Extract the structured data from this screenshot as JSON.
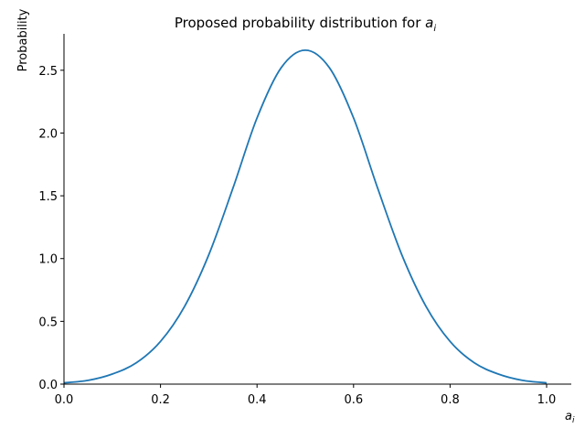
{
  "chart_data": {
    "type": "line",
    "title_prefix": "Proposed probability distribution for ",
    "title_var": "a",
    "title_sub": "i",
    "xlabel_var": "a",
    "xlabel_sub": "i",
    "ylabel": "Probability",
    "xlim": [
      0.0,
      1.05
    ],
    "ylim": [
      0.0,
      2.79
    ],
    "xticks": [
      {
        "value": 0.0,
        "label": "0.0"
      },
      {
        "value": 0.2,
        "label": "0.2"
      },
      {
        "value": 0.4,
        "label": "0.4"
      },
      {
        "value": 0.6,
        "label": "0.6"
      },
      {
        "value": 0.8,
        "label": "0.8"
      },
      {
        "value": 1.0,
        "label": "1.0"
      }
    ],
    "yticks": [
      {
        "value": 0.0,
        "label": "0.0"
      },
      {
        "value": 0.5,
        "label": "0.5"
      },
      {
        "value": 1.0,
        "label": "1.0"
      },
      {
        "value": 1.5,
        "label": "1.5"
      },
      {
        "value": 2.0,
        "label": "2.0"
      },
      {
        "value": 2.5,
        "label": "2.5"
      }
    ],
    "grid": false,
    "line_color": "#1f77b4",
    "series": [
      {
        "x": [
          0.0,
          0.05,
          0.1,
          0.15,
          0.2,
          0.25,
          0.3,
          0.35,
          0.4,
          0.45,
          0.5,
          0.55,
          0.6,
          0.65,
          0.7,
          0.75,
          0.8,
          0.85,
          0.9,
          0.95,
          1.0
        ],
        "values": [
          0.01,
          0.03,
          0.08,
          0.17,
          0.34,
          0.62,
          1.03,
          1.56,
          2.12,
          2.52,
          2.66,
          2.52,
          2.12,
          1.56,
          1.03,
          0.62,
          0.34,
          0.17,
          0.08,
          0.03,
          0.01
        ]
      }
    ]
  }
}
